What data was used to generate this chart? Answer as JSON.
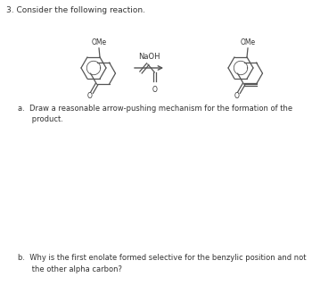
{
  "title": "3. Consider the following reaction.",
  "question_a": "a.  Draw a reasonable arrow-pushing mechanism for the formation of the\n      product.",
  "question_b": "b.  Why is the first enolate formed selective for the benzylic position and not\n      the other alpha carbon?",
  "naoh_label": "NaOH",
  "ome_label1": "OMe",
  "ome_label2": "OMe",
  "bg_color": "#ffffff",
  "text_color": "#333333",
  "line_color": "#555555",
  "font_size_title": 6.5,
  "font_size_text": 6.0,
  "font_size_label": 5.5,
  "font_size_atom": 5.5
}
